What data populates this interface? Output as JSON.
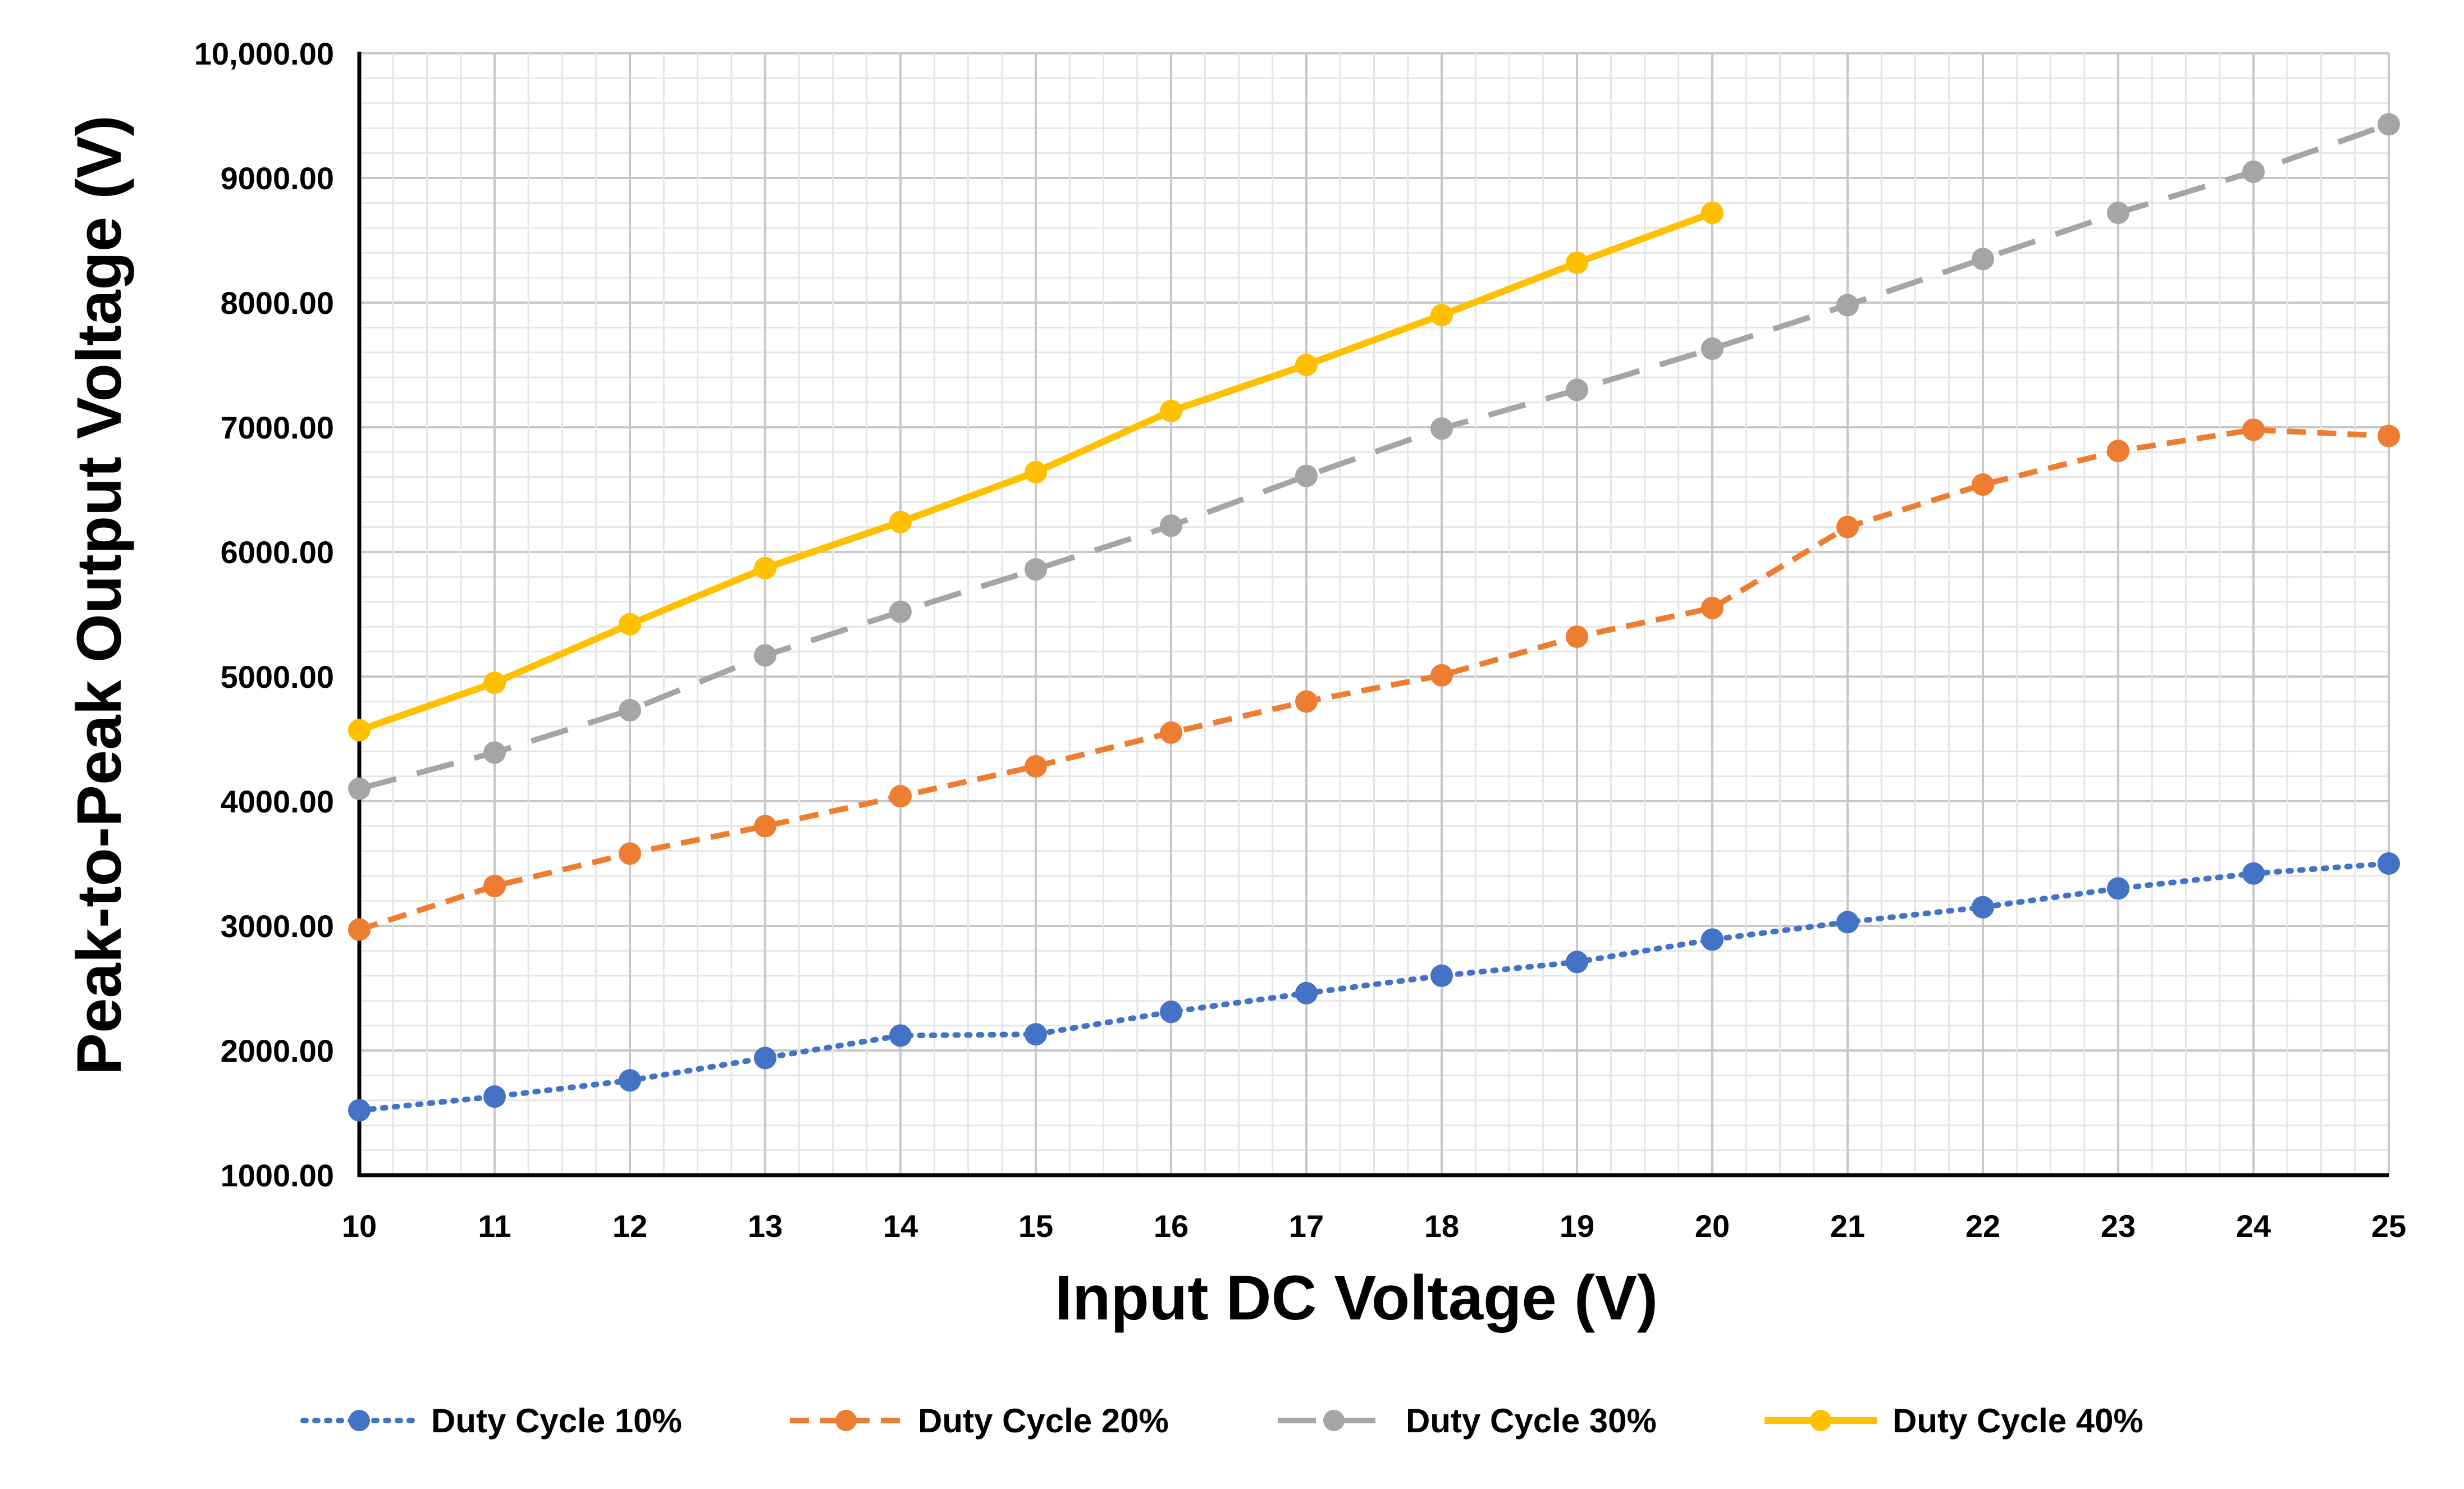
{
  "chart_data": {
    "type": "line",
    "title": "",
    "xlabel": "Input DC Voltage (V)",
    "ylabel": "Peak-to-Peak Output Voltage (V)",
    "xlim": [
      10,
      25
    ],
    "ylim": [
      1000,
      10000
    ],
    "grid": true,
    "legend_position": "bottom",
    "x_tick_labels": [
      "10",
      "11",
      "12",
      "13",
      "14",
      "15",
      "16",
      "17",
      "18",
      "19",
      "20",
      "21",
      "22",
      "23",
      "24",
      "25"
    ],
    "y_tick_labels": [
      "1000.00",
      "2000.00",
      "3000.00",
      "4000.00",
      "5000.00",
      "6000.00",
      "7000.00",
      "8000.00",
      "9000.00",
      "10,000.00"
    ],
    "series": [
      {
        "name": "Duty Cycle 10%",
        "color": "#4472C4",
        "line_style": "dotted",
        "x": [
          10,
          11,
          12,
          13,
          14,
          15,
          16,
          17,
          18,
          19,
          20,
          21,
          22,
          23,
          24,
          25
        ],
        "values": [
          1520,
          1630,
          1760,
          1940,
          2120,
          2130,
          2310,
          2460,
          2600,
          2710,
          2890,
          3030,
          3150,
          3300,
          3420,
          3500
        ]
      },
      {
        "name": "Duty Cycle 20%",
        "color": "#ED7D31",
        "line_style": "dashed",
        "x": [
          10,
          11,
          12,
          13,
          14,
          15,
          16,
          17,
          18,
          19,
          20,
          21,
          22,
          23,
          24,
          25
        ],
        "values": [
          2970,
          3320,
          3580,
          3800,
          4040,
          4280,
          4550,
          4800,
          5010,
          5320,
          5550,
          6200,
          6540,
          6810,
          6980,
          6930
        ]
      },
      {
        "name": "Duty Cycle 30%",
        "color": "#A5A5A5",
        "line_style": "long-dash",
        "x": [
          10,
          11,
          12,
          13,
          14,
          15,
          16,
          17,
          18,
          19,
          20,
          21,
          22,
          23,
          24,
          25
        ],
        "values": [
          4100,
          4390,
          4730,
          5170,
          5520,
          5860,
          6210,
          6610,
          6990,
          7300,
          7630,
          7980,
          8350,
          8720,
          9050,
          9430
        ]
      },
      {
        "name": "Duty Cycle 40%",
        "color": "#FFC000",
        "line_style": "solid",
        "x": [
          10,
          11,
          12,
          13,
          14,
          15,
          16,
          17,
          18,
          19,
          20
        ],
        "values": [
          4570,
          4950,
          5420,
          5870,
          6240,
          6640,
          7130,
          7500,
          7900,
          8320,
          8720
        ]
      }
    ]
  }
}
